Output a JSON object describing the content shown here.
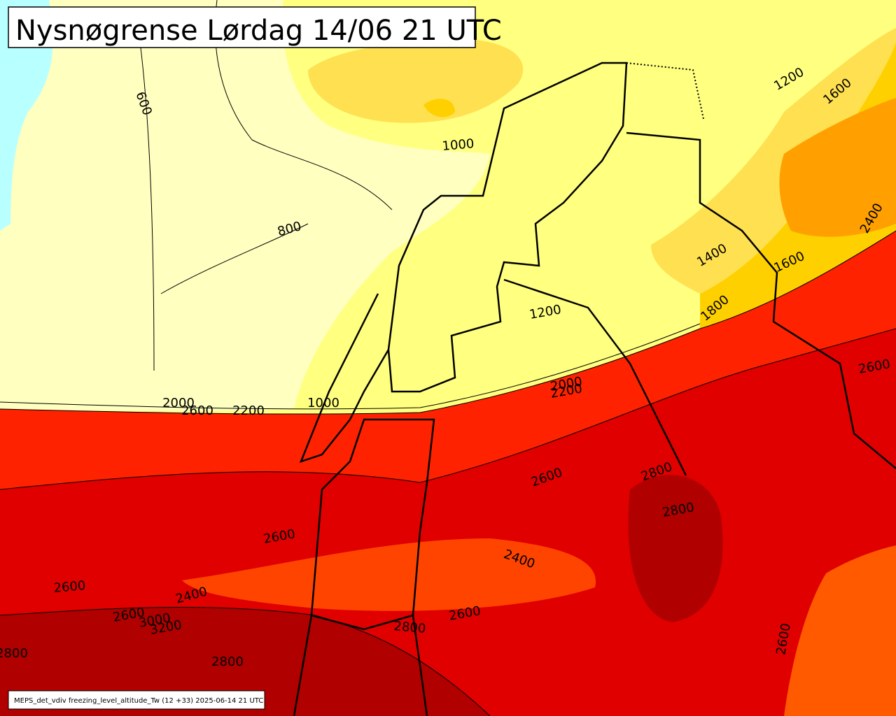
{
  "header": {
    "title": "Nysnøgrense Lørdag 14/06 21 UTC"
  },
  "contour_labels": [
    "600",
    "800",
    "1000",
    "1200",
    "1600",
    "1400",
    "1600",
    "1800",
    "2400",
    "1200",
    "2000",
    "2200",
    "2600",
    "2000",
    "2600",
    "2200",
    "1000",
    "2600",
    "2800",
    "2800",
    "2600",
    "2400",
    "2600",
    "2400",
    "2600",
    "3000",
    "3200",
    "2600",
    "2800",
    "2800",
    "2800",
    "2600"
  ],
  "footer": {
    "caption": "MEPS_det_vdiv freezing_level_altitude_Tw (12 +33) 2025-06-14 21 UTC"
  }
}
